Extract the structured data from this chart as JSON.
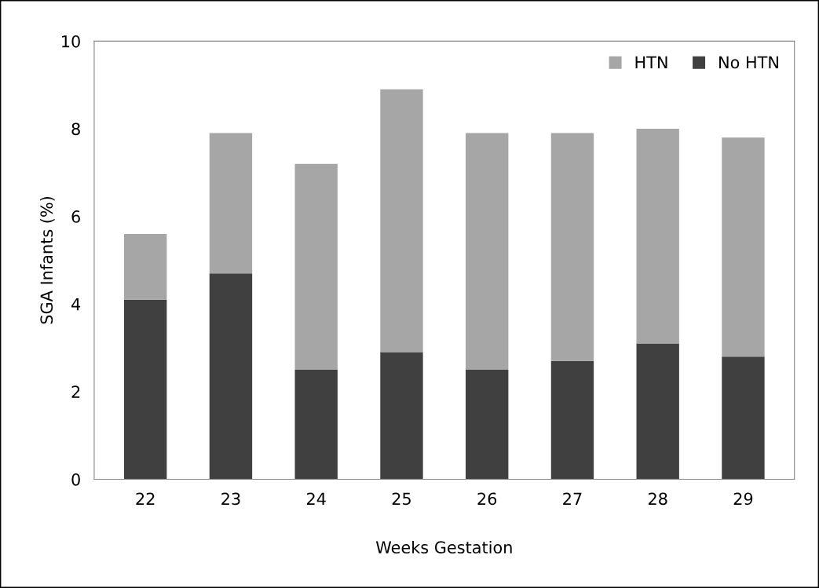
{
  "chart_data": {
    "type": "bar",
    "stacked": true,
    "xlabel": "Weeks Gestation",
    "ylabel": "SGA Infants (%)",
    "categories": [
      "22",
      "23",
      "24",
      "25",
      "26",
      "27",
      "28",
      "29"
    ],
    "series": [
      {
        "name": "No HTN",
        "color": "#404040",
        "values": [
          4.1,
          4.7,
          2.5,
          2.9,
          2.5,
          2.7,
          3.1,
          2.8
        ]
      },
      {
        "name": "HTN",
        "color": "#a6a6a6",
        "values": [
          1.5,
          3.2,
          4.7,
          6.0,
          5.4,
          5.2,
          4.9,
          5.0
        ]
      }
    ],
    "ylim": [
      0,
      10
    ],
    "yticks": [
      0,
      2,
      4,
      6,
      8,
      10
    ],
    "grid": false,
    "legend": "top right"
  }
}
